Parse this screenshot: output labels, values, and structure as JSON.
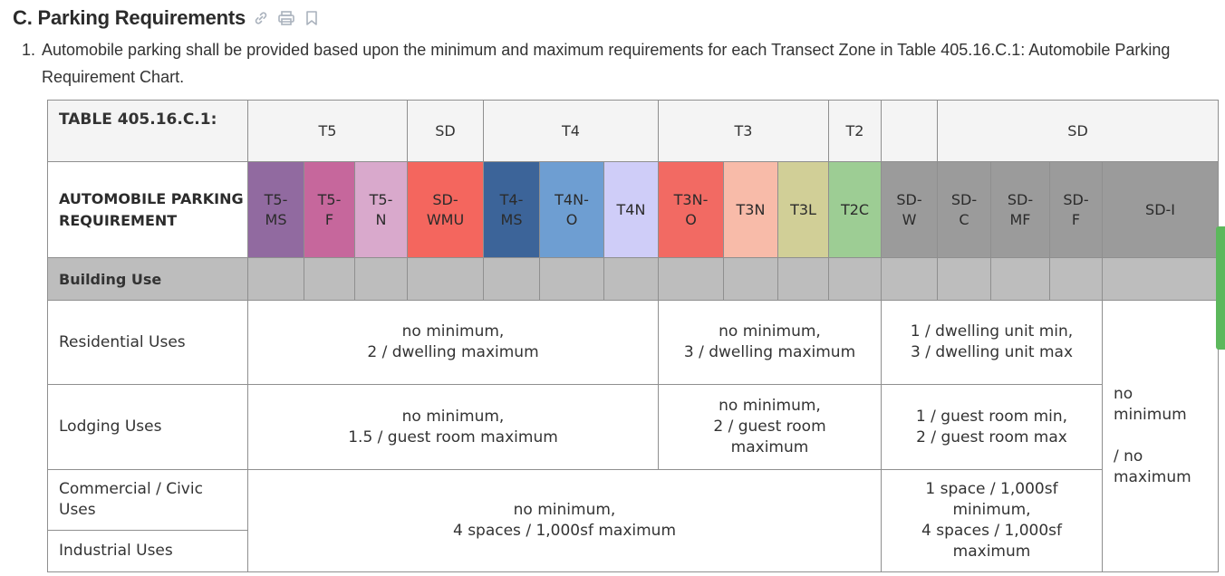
{
  "section": {
    "title": "C. Parking Requirements",
    "icons": [
      "link-icon",
      "print-icon",
      "bookmark-icon"
    ]
  },
  "paragraph": {
    "number": "1.",
    "text": "Automobile parking shall be provided based upon the minimum and maximum requirements for each Transect Zone in Table 405.16.C.1: Automobile Parking Requirement Chart."
  },
  "table": {
    "label": "TABLE 405.16.C.1:",
    "title": "AUTOMOBILE PARKING REQUIREMENT",
    "zone_groups": [
      {
        "label": "T5",
        "span": 3
      },
      {
        "label": "SD",
        "span": 1
      },
      {
        "label": "T4",
        "span": 3
      },
      {
        "label": "T3",
        "span": 3
      },
      {
        "label": "T2",
        "span": 1
      },
      {
        "label": "",
        "span": 1
      },
      {
        "label": "SD",
        "span": 4
      }
    ],
    "zones": [
      {
        "code": "T5-\nMS",
        "color": "#916aa0"
      },
      {
        "code": "T5-\nF",
        "color": "#c6679c"
      },
      {
        "code": "T5-\nN",
        "color": "#d9a9cc"
      },
      {
        "code": "SD-\nWMU",
        "color": "#f4665e"
      },
      {
        "code": "T4-\nMS",
        "color": "#3c6499"
      },
      {
        "code": "T4N-\nO",
        "color": "#6e9ed2"
      },
      {
        "code": "T4N",
        "color": "#cfcdf8"
      },
      {
        "code": "T3N-\nO",
        "color": "#f26a63"
      },
      {
        "code": "T3N",
        "color": "#f8bba9"
      },
      {
        "code": "T3L",
        "color": "#d1cf97"
      },
      {
        "code": "T2C",
        "color": "#9dcd94"
      },
      {
        "code": "SD-\nW",
        "color": "#9b9b9b"
      },
      {
        "code": "SD-\nC",
        "color": "#9b9b9b"
      },
      {
        "code": "SD-\nMF",
        "color": "#9b9b9b"
      },
      {
        "code": "SD-\nF",
        "color": "#9b9b9b"
      },
      {
        "code": "SD-I",
        "color": "#9b9b9b"
      }
    ],
    "building_use_label": "Building Use",
    "rows": {
      "residential": {
        "label": "Residential Uses",
        "t5_t4": "no minimum,\n2 / dwelling maximum",
        "t3_t2": "no minimum,\n3 / dwelling maximum",
        "sd": "1 / dwelling unit min,\n3 / dwelling unit max"
      },
      "lodging": {
        "label": "Lodging Uses",
        "t5_t4": "no minimum,\n1.5 / guest room maximum",
        "t3_t2": "no minimum,\n2 / guest room\nmaximum",
        "sd": "1 / guest room min,\n2 / guest room max"
      },
      "commercial": {
        "label": "Commercial / Civic\nUses"
      },
      "industrial": {
        "label": "Industrial Uses"
      },
      "commercial_industrial": {
        "t_zones": "no minimum,\n4 spaces / 1,000sf maximum",
        "sd": "1 space / 1,000sf\nminimum,\n4 spaces / 1,000sf\nmaximum"
      },
      "sdi": "no\nminimum\n\n/ no\nmaximum"
    }
  }
}
